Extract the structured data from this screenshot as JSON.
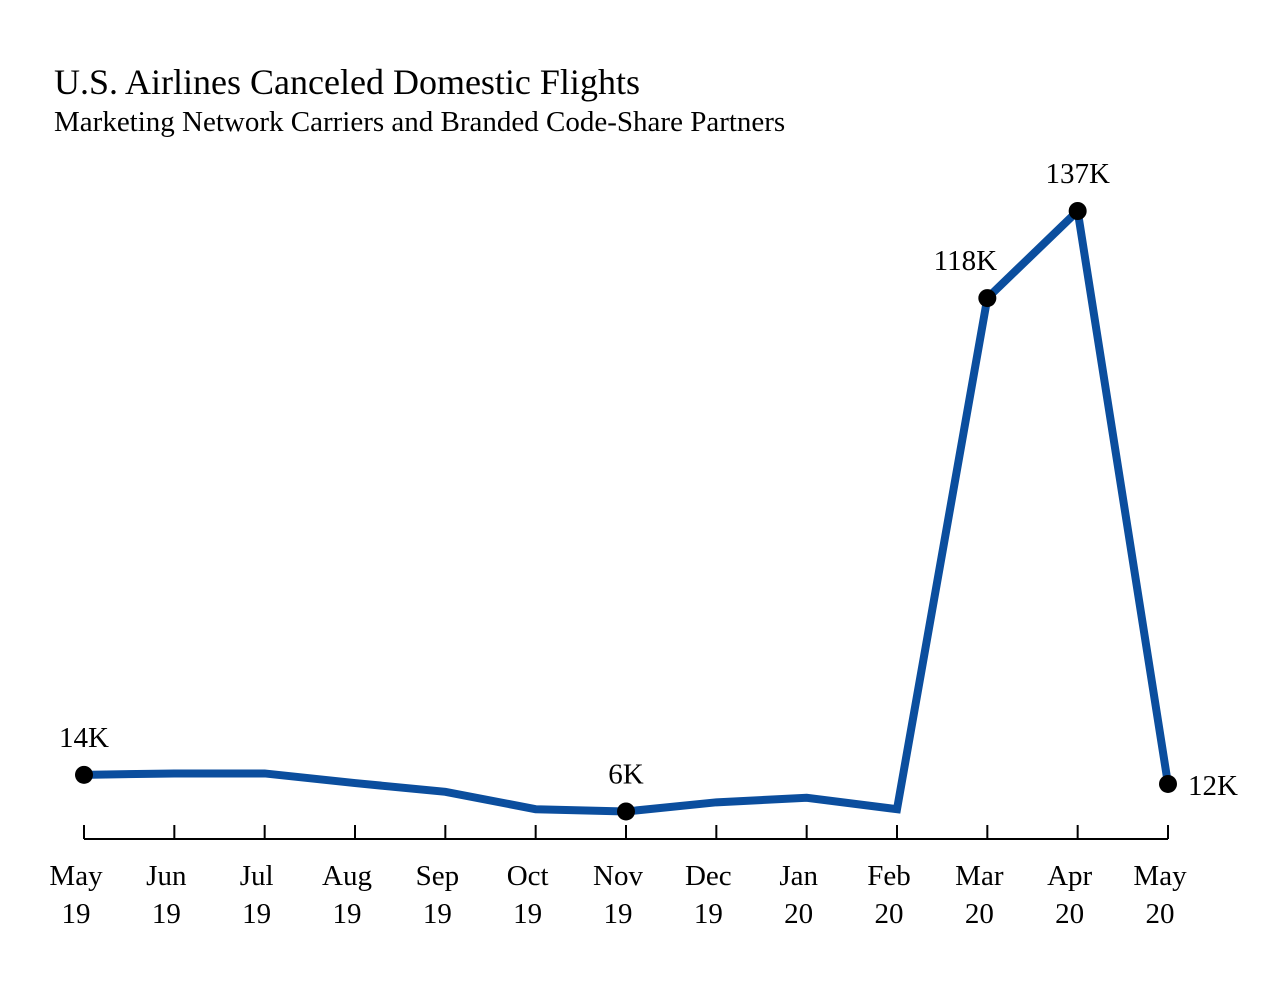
{
  "title": "U.S. Airlines Canceled Domestic Flights",
  "subtitle": "Marketing Network Carriers and Branded Code-Share Partners",
  "chart_data": {
    "type": "line",
    "title": "U.S. Airlines Canceled Domestic Flights",
    "subtitle": "Marketing Network Carriers and Branded Code-Share Partners",
    "xlabel": "",
    "ylabel": "",
    "categories": [
      [
        "May",
        "19"
      ],
      [
        "Jun",
        "19"
      ],
      [
        "Jul",
        "19"
      ],
      [
        "Aug",
        "19"
      ],
      [
        "Sep",
        "19"
      ],
      [
        "Oct",
        "19"
      ],
      [
        "Nov",
        "19"
      ],
      [
        "Dec",
        "19"
      ],
      [
        "Jan",
        "20"
      ],
      [
        "Feb",
        "20"
      ],
      [
        "Mar",
        "20"
      ],
      [
        "Apr",
        "20"
      ],
      [
        "May",
        "20"
      ]
    ],
    "series": [
      {
        "values": [
          14,
          14.3,
          14.3,
          12.2,
          10.3,
          6.5,
          6,
          8,
          9,
          6.5,
          118,
          137,
          12
        ],
        "color": "#0b4e9e"
      }
    ],
    "unit": "K",
    "ylim": [
      0,
      145
    ],
    "y_axis_visible": false,
    "grid": false,
    "legend": "none",
    "annotated_points": [
      {
        "index": 0,
        "label": "14K",
        "position": "above"
      },
      {
        "index": 6,
        "label": "6K",
        "position": "above"
      },
      {
        "index": 10,
        "label": "118K",
        "position": "above-left"
      },
      {
        "index": 11,
        "label": "137K",
        "position": "above"
      },
      {
        "index": 12,
        "label": "12K",
        "position": "right"
      }
    ],
    "line_color": "#0b4e9e",
    "marker_color": "#000000"
  }
}
